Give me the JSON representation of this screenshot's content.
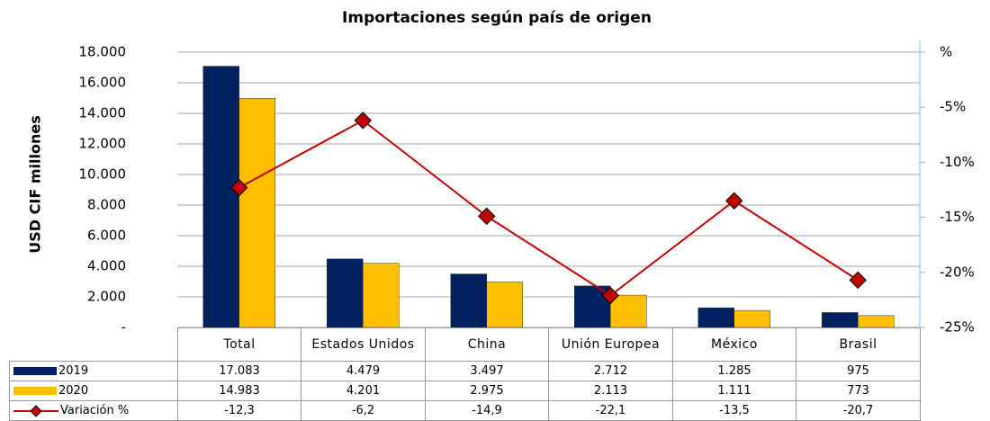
{
  "chart_data": {
    "type": "bar",
    "title": "Importaciones según país de origen",
    "ylabel": "USD CIF millones",
    "categories": [
      "Total",
      "Estados Unidos",
      "China",
      "Unión Europea",
      "México",
      "Brasil"
    ],
    "series": [
      {
        "name": "2019",
        "type": "bar",
        "color": "#002060",
        "values": [
          17083,
          4479,
          3497,
          2712,
          1285,
          975
        ],
        "value_labels": [
          "17.083",
          "4.479",
          "3.497",
          "2.712",
          "1.285",
          "975"
        ]
      },
      {
        "name": "2020",
        "type": "bar",
        "color": "#FFC000",
        "values": [
          14983,
          4201,
          2975,
          2113,
          1111,
          773
        ],
        "value_labels": [
          "14.983",
          "4.201",
          "2.975",
          "2.113",
          "1.111",
          "773"
        ]
      },
      {
        "name": "Variación %",
        "type": "line",
        "axis": "y2",
        "color": "#C00000",
        "values": [
          -12.3,
          -6.2,
          -14.9,
          -22.1,
          -13.5,
          -20.7
        ],
        "value_labels": [
          "-12,3",
          "-6,2",
          "-14,9",
          "-22,1",
          "-13,5",
          "-20,7"
        ]
      }
    ],
    "ylim": [
      0,
      18000
    ],
    "yticks": [
      {
        "value": 0,
        "label": "-"
      },
      {
        "value": 2000,
        "label": "2.000"
      },
      {
        "value": 4000,
        "label": "4.000"
      },
      {
        "value": 6000,
        "label": "6.000"
      },
      {
        "value": 8000,
        "label": "8.000"
      },
      {
        "value": 10000,
        "label": "10.000"
      },
      {
        "value": 12000,
        "label": "12.000"
      },
      {
        "value": 14000,
        "label": "14.000"
      },
      {
        "value": 16000,
        "label": "16.000"
      },
      {
        "value": 18000,
        "label": "18.000"
      }
    ],
    "y2lim": [
      -25,
      0
    ],
    "y2ticks": [
      {
        "value": -25,
        "label": "-25%"
      },
      {
        "value": -20,
        "label": "-20%"
      },
      {
        "value": -15,
        "label": "-15%"
      },
      {
        "value": -10,
        "label": "-10%"
      },
      {
        "value": -5,
        "label": "-5%"
      },
      {
        "value": 0,
        "label": "%"
      }
    ],
    "grid": true
  }
}
